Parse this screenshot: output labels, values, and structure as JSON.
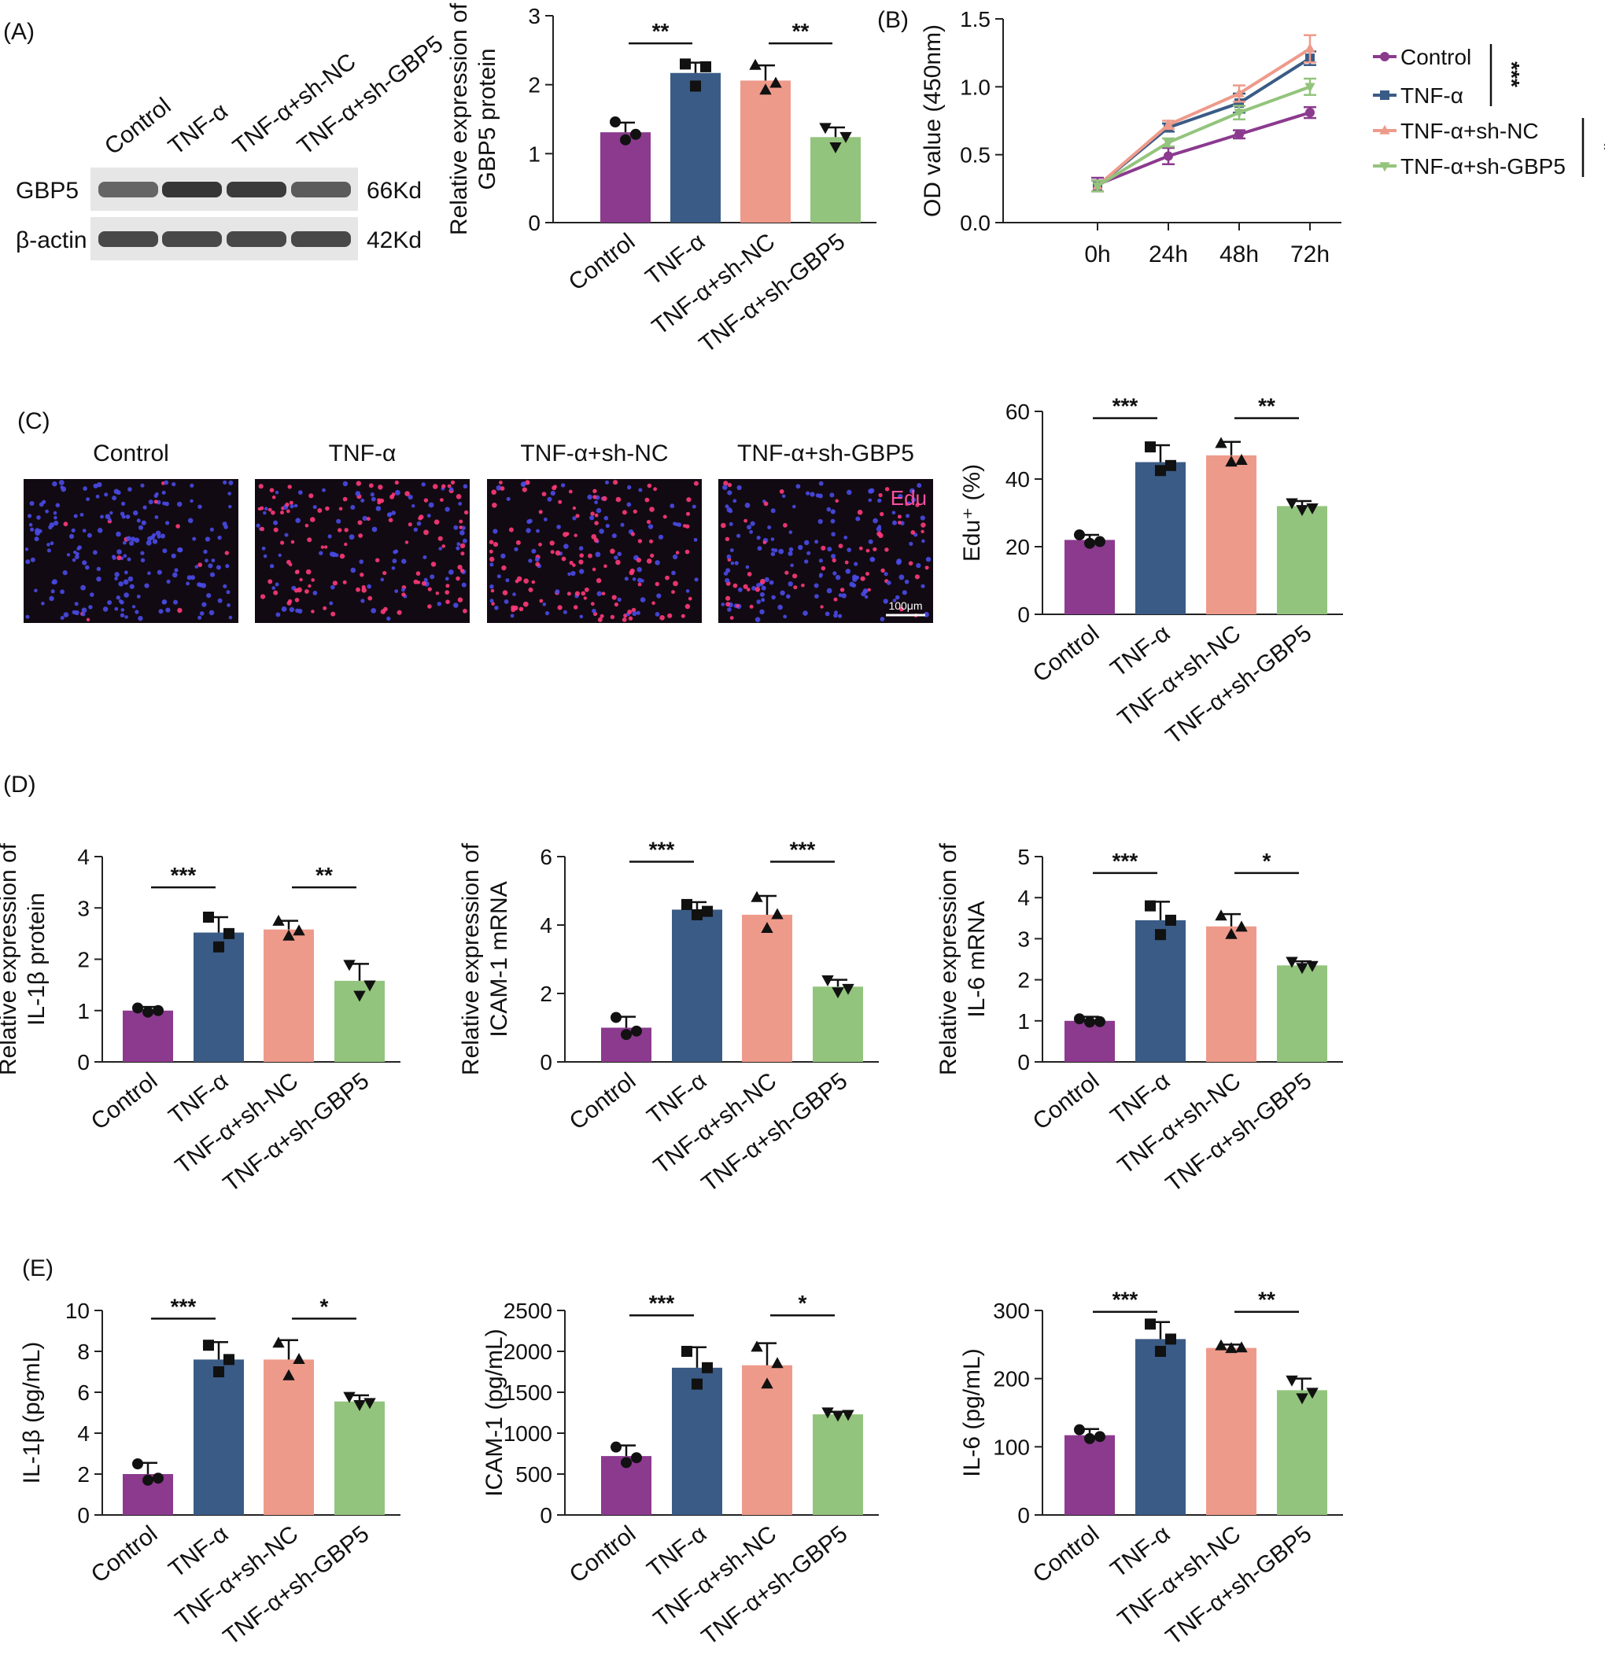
{
  "panels": {
    "A": "(A)",
    "B": "(B)",
    "C": "(C)",
    "D": "(D)",
    "E": "(E)"
  },
  "groups": [
    "Control",
    "TNF-α",
    "TNF-α+sh-NC",
    "TNF-α+sh-GBP5"
  ],
  "colors": {
    "Control": "#8B3A8E",
    "TNF-α": "#3A5B85",
    "TNF-α+sh-NC": "#EE9A8A",
    "TNF-α+sh-GBP5": "#93C47D"
  },
  "western_blot": {
    "lanes": [
      "Control",
      "TNF-α",
      "TNF-α+sh-NC",
      "TNF-α+sh-GBP5"
    ],
    "rows": [
      {
        "label": "GBP5",
        "size": "66Kd",
        "intensity": [
          0.62,
          0.92,
          0.88,
          0.68
        ]
      },
      {
        "label": "β-actin",
        "size": "42Kd",
        "intensity": [
          0.8,
          0.8,
          0.8,
          0.8
        ]
      }
    ]
  },
  "microscopy": {
    "titles": [
      "Control",
      "TNF-α",
      "TNF-α+sh-NC",
      "TNF-α+sh-GBP5"
    ],
    "stain_label": "Edu",
    "scale_label": "100μm"
  },
  "chart_data": [
    {
      "id": "gbp5",
      "type": "bar",
      "categories": [
        "Control",
        "TNF-α",
        "TNF-α+sh-NC",
        "TNF-α+sh-GBP5"
      ],
      "values": [
        1.31,
        2.17,
        2.06,
        1.24
      ],
      "errors": [
        0.14,
        0.15,
        0.22,
        0.14
      ],
      "points": [
        [
          1.46,
          1.28,
          1.2
        ],
        [
          2.3,
          2.26,
          1.98
        ],
        [
          2.28,
          2.02,
          1.92
        ],
        [
          1.38,
          1.25,
          1.1
        ]
      ],
      "ylabel": [
        "Relative expression of",
        "GBP5 protein"
      ],
      "ylim": [
        0,
        3
      ],
      "yticks": [
        0,
        1,
        2,
        3
      ],
      "sig": [
        {
          "from": 0,
          "to": 1,
          "label": "**",
          "y": 2.6
        },
        {
          "from": 2,
          "to": 3,
          "label": "**",
          "y": 2.6
        }
      ]
    },
    {
      "id": "od",
      "type": "line",
      "x": [
        "0h",
        "24h",
        "48h",
        "72h"
      ],
      "series": [
        {
          "name": "Control",
          "values": [
            0.28,
            0.49,
            0.65,
            0.81
          ],
          "errors": [
            0.05,
            0.06,
            0.03,
            0.04
          ],
          "marker": "circle"
        },
        {
          "name": "TNF-α",
          "values": [
            0.27,
            0.7,
            0.88,
            1.21
          ],
          "errors": [
            0.04,
            0.03,
            0.07,
            0.05
          ],
          "marker": "square"
        },
        {
          "name": "TNF-α+sh-NC",
          "values": [
            0.27,
            0.72,
            0.95,
            1.28
          ],
          "errors": [
            0.04,
            0.03,
            0.06,
            0.1
          ],
          "marker": "triangle-up"
        },
        {
          "name": "TNF-α+sh-GBP5",
          "values": [
            0.27,
            0.59,
            0.81,
            1.0
          ],
          "errors": [
            0.04,
            0.03,
            0.05,
            0.06
          ],
          "marker": "triangle-down"
        }
      ],
      "ylabel": "OD value (450nm)",
      "ylim": [
        0,
        1.5
      ],
      "yticks": [
        0.0,
        0.5,
        1.0,
        1.5
      ],
      "legend_sig": [
        {
          "from": 0,
          "to": 1,
          "label": "***"
        },
        {
          "from": 2,
          "to": 3,
          "label": "*"
        }
      ]
    },
    {
      "id": "edu",
      "type": "bar",
      "categories": [
        "Control",
        "TNF-α",
        "TNF-α+sh-NC",
        "TNF-α+sh-GBP5"
      ],
      "values": [
        22,
        45,
        47,
        32
      ],
      "errors": [
        1.5,
        5,
        4,
        1.5
      ],
      "points": [
        [
          23.5,
          21.5,
          21
        ],
        [
          49.5,
          44,
          42.5
        ],
        [
          50.5,
          45.5,
          45
        ],
        [
          33,
          31.5,
          31
        ]
      ],
      "ylabel": [
        "Edu⁺ (%)"
      ],
      "ylim": [
        0,
        60
      ],
      "yticks": [
        0,
        20,
        40,
        60
      ],
      "sig": [
        {
          "from": 0,
          "to": 1,
          "label": "***",
          "y": 58
        },
        {
          "from": 2,
          "to": 3,
          "label": "**",
          "y": 58
        }
      ]
    },
    {
      "id": "il1b_protein",
      "type": "bar",
      "categories": [
        "Control",
        "TNF-α",
        "TNF-α+sh-NC",
        "TNF-α+sh-GBP5"
      ],
      "values": [
        1.0,
        2.52,
        2.58,
        1.58
      ],
      "errors": [
        0.07,
        0.3,
        0.17,
        0.33
      ],
      "points": [
        [
          1.05,
          1.0,
          0.97
        ],
        [
          2.82,
          2.5,
          2.24
        ],
        [
          2.74,
          2.55,
          2.45
        ],
        [
          1.9,
          1.5,
          1.3
        ]
      ],
      "ylabel": [
        "Relative expression of",
        "IL-1β protein"
      ],
      "ylim": [
        0,
        4
      ],
      "yticks": [
        0,
        1,
        2,
        3,
        4
      ],
      "sig": [
        {
          "from": 0,
          "to": 1,
          "label": "***",
          "y": 3.4
        },
        {
          "from": 2,
          "to": 3,
          "label": "**",
          "y": 3.4
        }
      ]
    },
    {
      "id": "icam1_mrna",
      "type": "bar",
      "categories": [
        "Control",
        "TNF-α",
        "TNF-α+sh-NC",
        "TNF-α+sh-GBP5"
      ],
      "values": [
        1.0,
        4.45,
        4.3,
        2.2
      ],
      "errors": [
        0.32,
        0.22,
        0.55,
        0.2
      ],
      "points": [
        [
          1.3,
          0.9,
          0.8
        ],
        [
          4.6,
          4.4,
          4.3
        ],
        [
          4.8,
          4.3,
          3.9
        ],
        [
          2.4,
          2.15,
          2.05
        ]
      ],
      "ylabel": [
        "Relative expression of",
        "ICAM-1 mRNA"
      ],
      "ylim": [
        0,
        6
      ],
      "yticks": [
        0,
        2,
        4,
        6
      ],
      "sig": [
        {
          "from": 0,
          "to": 1,
          "label": "***",
          "y": 5.85
        },
        {
          "from": 2,
          "to": 3,
          "label": "***",
          "y": 5.85
        }
      ]
    },
    {
      "id": "il6_mrna",
      "type": "bar",
      "categories": [
        "Control",
        "TNF-α",
        "TNF-α+sh-NC",
        "TNF-α+sh-GBP5"
      ],
      "values": [
        1.0,
        3.45,
        3.3,
        2.35
      ],
      "errors": [
        0.1,
        0.45,
        0.3,
        0.1
      ],
      "points": [
        [
          1.05,
          0.98,
          0.97
        ],
        [
          3.8,
          3.45,
          3.1
        ],
        [
          3.55,
          3.28,
          3.1
        ],
        [
          2.45,
          2.35,
          2.3
        ]
      ],
      "ylabel": [
        "Relative expression of",
        "IL-6 mRNA"
      ],
      "ylim": [
        0,
        5
      ],
      "yticks": [
        0,
        1,
        2,
        3,
        4,
        5
      ],
      "sig": [
        {
          "from": 0,
          "to": 1,
          "label": "***",
          "y": 4.6
        },
        {
          "from": 2,
          "to": 3,
          "label": "*",
          "y": 4.6
        }
      ]
    },
    {
      "id": "il1b_elisa",
      "type": "bar",
      "categories": [
        "Control",
        "TNF-α",
        "TNF-α+sh-NC",
        "TNF-α+sh-GBP5"
      ],
      "values": [
        2.0,
        7.6,
        7.6,
        5.55
      ],
      "errors": [
        0.55,
        0.85,
        0.95,
        0.3
      ],
      "points": [
        [
          2.5,
          1.8,
          1.7
        ],
        [
          8.3,
          7.6,
          7.0
        ],
        [
          8.4,
          7.6,
          6.8
        ],
        [
          5.8,
          5.5,
          5.4
        ]
      ],
      "ylabel": [
        "IL-1β (pg/mL)"
      ],
      "ylim": [
        0,
        10
      ],
      "yticks": [
        0,
        2,
        4,
        6,
        8,
        10
      ],
      "sig": [
        {
          "from": 0,
          "to": 1,
          "label": "***",
          "y": 9.6
        },
        {
          "from": 2,
          "to": 3,
          "label": "*",
          "y": 9.6
        }
      ]
    },
    {
      "id": "icam1_elisa",
      "type": "bar",
      "categories": [
        "Control",
        "TNF-α",
        "TNF-α+sh-NC",
        "TNF-α+sh-GBP5"
      ],
      "values": [
        720,
        1800,
        1830,
        1230
      ],
      "errors": [
        130,
        250,
        270,
        30
      ],
      "points": [
        [
          830,
          700,
          640
        ],
        [
          2000,
          1800,
          1600
        ],
        [
          2050,
          1850,
          1600
        ],
        [
          1260,
          1230,
          1220
        ]
      ],
      "ylabel": [
        "ICAM-1 (pg/mL)"
      ],
      "ylim": [
        0,
        2500
      ],
      "yticks": [
        0,
        500,
        1000,
        1500,
        2000,
        2500
      ],
      "sig": [
        {
          "from": 0,
          "to": 1,
          "label": "***",
          "y": 2440
        },
        {
          "from": 2,
          "to": 3,
          "label": "*",
          "y": 2440
        }
      ]
    },
    {
      "id": "il6_elisa",
      "type": "bar",
      "categories": [
        "Control",
        "TNF-α",
        "TNF-α+sh-NC",
        "TNF-α+sh-GBP5"
      ],
      "values": [
        117,
        258,
        245,
        183
      ],
      "errors": [
        9,
        25,
        5,
        17
      ],
      "points": [
        [
          125,
          115,
          112
        ],
        [
          280,
          258,
          240
        ],
        [
          248,
          245,
          244
        ],
        [
          198,
          180,
          172
        ]
      ],
      "ylabel": [
        "IL-6 (pg/mL)"
      ],
      "ylim": [
        0,
        300
      ],
      "yticks": [
        0,
        100,
        200,
        300
      ],
      "sig": [
        {
          "from": 0,
          "to": 1,
          "label": "***",
          "y": 298
        },
        {
          "from": 2,
          "to": 3,
          "label": "**",
          "y": 298
        }
      ]
    }
  ]
}
